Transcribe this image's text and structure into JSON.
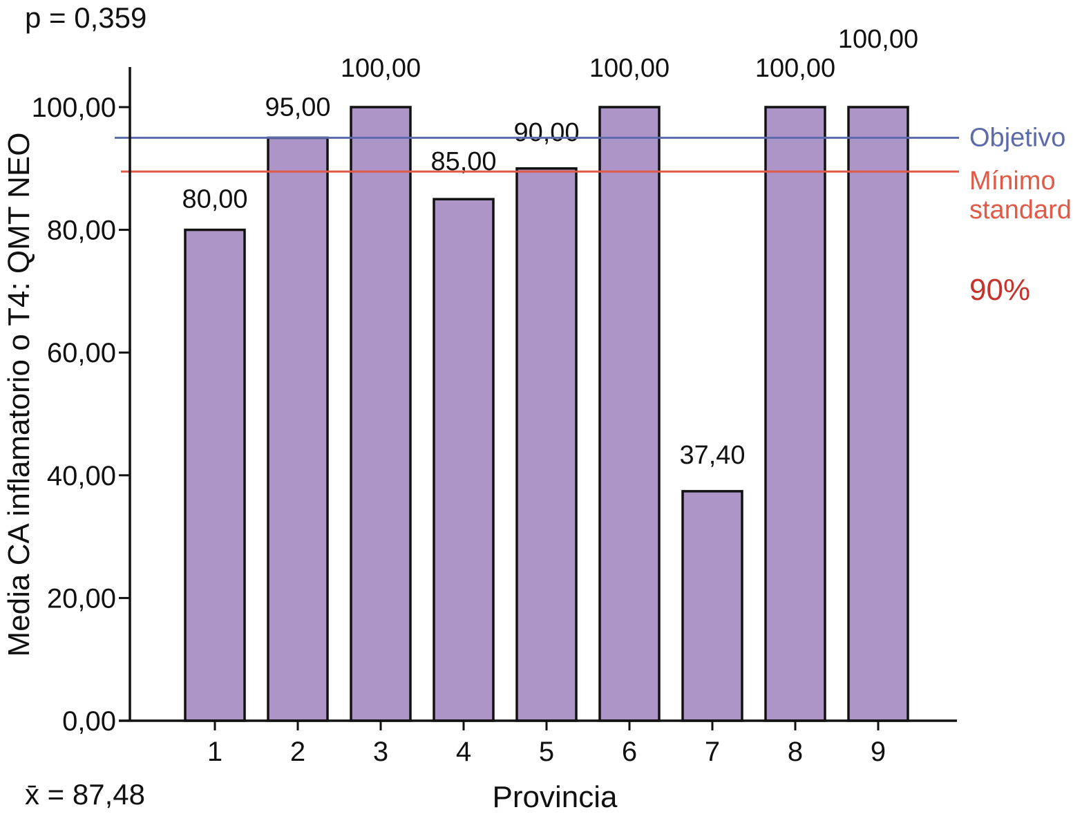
{
  "header": {
    "p_value": "p = 0,359"
  },
  "footer": {
    "mean": "x̄ = 87,48"
  },
  "chart_data": {
    "type": "bar",
    "xlabel": "Provincia",
    "ylabel": "Media CA inflamatorio o T4: QMT NEO",
    "categories": [
      "1",
      "2",
      "3",
      "4",
      "5",
      "6",
      "7",
      "8",
      "9"
    ],
    "values": [
      80.0,
      95.0,
      100.0,
      85.0,
      90.0,
      100.0,
      37.4,
      100.0,
      100.0
    ],
    "value_labels": [
      "80,00",
      "95,00",
      "100,00",
      "85,00",
      "90,00",
      "100,00",
      "37,40",
      "100,00",
      "100,00"
    ],
    "ylim": [
      0,
      106
    ],
    "yticks": [
      0,
      20,
      40,
      60,
      80,
      100
    ],
    "ytick_labels": [
      "0,00",
      "20,00",
      "40,00",
      "60,00",
      "80,00",
      "100,00"
    ],
    "grid": false,
    "bar_color": "#ad95c8",
    "reference_lines": [
      {
        "label": "Objetivo",
        "value": 95,
        "color": "#5a6aaa"
      },
      {
        "label": "Mínimo standard",
        "value": 89.5,
        "color": "#e05a47",
        "sublabel": "90%",
        "sublabel_color": "#c7332c"
      }
    ]
  }
}
